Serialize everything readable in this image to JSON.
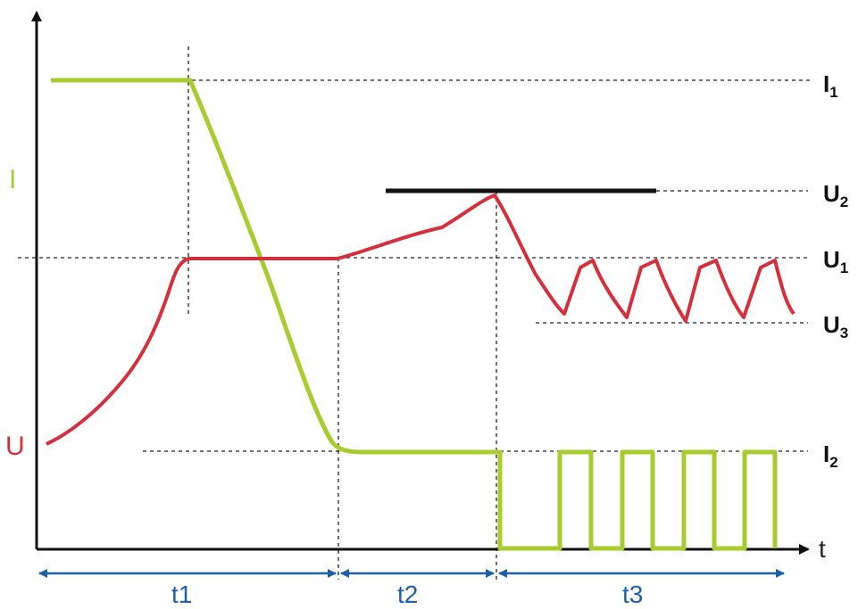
{
  "chart_data": {
    "type": "line",
    "x_label": "t",
    "grid": false,
    "y_axis_labels": {
      "current": "I",
      "voltage": "U"
    },
    "reference_levels": [
      {
        "base": "I",
        "sub": "1"
      },
      {
        "base": "U",
        "sub": "2"
      },
      {
        "base": "U",
        "sub": "1"
      },
      {
        "base": "U",
        "sub": "3"
      },
      {
        "base": "I",
        "sub": "2"
      }
    ],
    "phases": [
      {
        "label": "t1"
      },
      {
        "label": "t2"
      },
      {
        "label": "t3"
      }
    ],
    "series": [
      {
        "key": "current",
        "color": "#a8cc2e",
        "shape": "constant at I1, ramps down to I2, holds at I2, then pulses between 0 and I2 in phase t3"
      },
      {
        "key": "voltage",
        "color": "#d62f3c",
        "shape": "rises to U1, holds, rises to U2, then oscillates between U1 and U3 in phase t3"
      },
      {
        "key": "u2-limit",
        "color": "#111111",
        "shape": "horizontal bar at level U2"
      }
    ],
    "colors": {
      "axis": "#111111",
      "dashed_guides": "#222222",
      "phase_arrows": "#1f5fa8"
    }
  }
}
